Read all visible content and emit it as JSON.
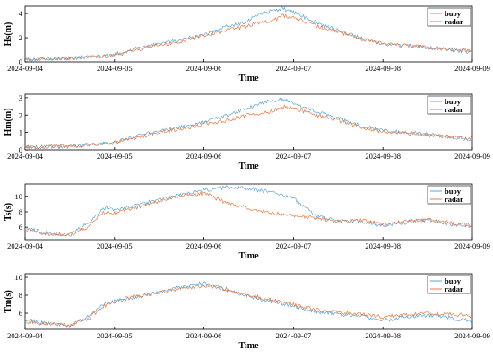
{
  "colors": {
    "buoy": "#5aa7de",
    "radar": "#ec7a42",
    "axis": "#000000"
  },
  "chart_data": [
    {
      "type": "line",
      "ylabel": "Hs(m)",
      "xlabel": "Time",
      "ylim": [
        0,
        4.6
      ],
      "yticks": [
        0,
        2,
        4
      ],
      "xlim": [
        "2024-09-04",
        "2024-09-09"
      ],
      "xticks": [
        "2024-09-04",
        "2024-09-05",
        "2024-09-06",
        "2024-09-07",
        "2024-09-08",
        "2024-09-09"
      ],
      "grid": false,
      "legend": "top-right",
      "x": [
        "2024-09-04",
        "2024-09-04 12:00",
        "2024-09-04 17:00",
        "2024-09-05",
        "2024-09-05 06:00",
        "2024-09-05 12:00",
        "2024-09-05 18:00",
        "2024-09-06",
        "2024-09-06 06:00",
        "2024-09-06 12:00",
        "2024-09-06 15:00",
        "2024-09-06 18:00",
        "2024-09-06 21:00",
        "2024-09-07",
        "2024-09-07 06:00",
        "2024-09-07 12:00",
        "2024-09-07 18:00",
        "2024-09-08",
        "2024-09-08 12:00",
        "2024-09-09"
      ],
      "series": [
        {
          "name": "buoy",
          "values": [
            0.2,
            0.3,
            0.4,
            0.6,
            1.1,
            1.5,
            1.8,
            2.3,
            2.9,
            3.4,
            4.0,
            4.2,
            4.4,
            4.1,
            3.3,
            2.6,
            2.0,
            1.5,
            1.2,
            0.8
          ]
        },
        {
          "name": "radar",
          "values": [
            0.2,
            0.3,
            0.4,
            0.5,
            1.0,
            1.4,
            1.7,
            2.2,
            2.6,
            3.0,
            3.3,
            3.3,
            3.8,
            3.7,
            3.0,
            2.5,
            1.9,
            1.5,
            1.2,
            0.9
          ]
        }
      ]
    },
    {
      "type": "line",
      "ylabel": "Hm(m)",
      "xlabel": "Time",
      "ylim": [
        0,
        3.2
      ],
      "yticks": [
        0,
        1,
        2,
        3
      ],
      "xlim": [
        "2024-09-04",
        "2024-09-09"
      ],
      "xticks": [
        "2024-09-04",
        "2024-09-05",
        "2024-09-06",
        "2024-09-07",
        "2024-09-08",
        "2024-09-09"
      ],
      "grid": false,
      "legend": "top-right",
      "x": [
        "2024-09-04",
        "2024-09-04 12:00",
        "2024-09-04 17:00",
        "2024-09-05",
        "2024-09-05 06:00",
        "2024-09-05 12:00",
        "2024-09-05 18:00",
        "2024-09-06",
        "2024-09-06 06:00",
        "2024-09-06 12:00",
        "2024-09-06 15:00",
        "2024-09-06 18:00",
        "2024-09-06 21:00",
        "2024-09-07",
        "2024-09-07 06:00",
        "2024-09-07 12:00",
        "2024-09-07 18:00",
        "2024-09-08",
        "2024-09-08 12:00",
        "2024-09-09"
      ],
      "series": [
        {
          "name": "buoy",
          "values": [
            0.15,
            0.2,
            0.3,
            0.45,
            0.8,
            1.1,
            1.3,
            1.6,
            2.0,
            2.4,
            2.7,
            2.8,
            2.9,
            2.7,
            2.2,
            1.8,
            1.4,
            1.1,
            0.9,
            0.6
          ]
        },
        {
          "name": "radar",
          "values": [
            0.15,
            0.2,
            0.3,
            0.4,
            0.7,
            1.0,
            1.2,
            1.5,
            1.7,
            2.0,
            2.1,
            2.2,
            2.5,
            2.4,
            2.0,
            1.7,
            1.3,
            1.05,
            0.85,
            0.65
          ]
        }
      ]
    },
    {
      "type": "line",
      "ylabel": "Ts(s)",
      "xlabel": "Time",
      "ylim": [
        4.4,
        11.6
      ],
      "yticks": [
        6,
        8,
        10
      ],
      "xlim": [
        "2024-09-04",
        "2024-09-09"
      ],
      "xticks": [
        "2024-09-04",
        "2024-09-05",
        "2024-09-06",
        "2024-09-07",
        "2024-09-08",
        "2024-09-09"
      ],
      "grid": false,
      "legend": "top-right",
      "x": [
        "2024-09-04",
        "2024-09-04 05:00",
        "2024-09-04 12:00",
        "2024-09-04 17:00",
        "2024-09-04 21:00",
        "2024-09-05",
        "2024-09-05 06:00",
        "2024-09-05 12:00",
        "2024-09-05 18:00",
        "2024-09-06",
        "2024-09-06 06:00",
        "2024-09-06 12:00",
        "2024-09-06 18:00",
        "2024-09-07",
        "2024-09-07 06:00",
        "2024-09-07 12:00",
        "2024-09-07 18:00",
        "2024-09-08",
        "2024-09-08 06:00",
        "2024-09-08 12:00",
        "2024-09-08 18:00",
        "2024-09-09"
      ],
      "series": [
        {
          "name": "buoy",
          "values": [
            6.0,
            5.3,
            5.0,
            6.5,
            8.5,
            8.3,
            8.8,
            9.6,
            10.2,
            10.8,
            11.2,
            11.0,
            10.6,
            9.8,
            7.5,
            6.8,
            6.8,
            6.2,
            6.6,
            7.0,
            6.4,
            6.0
          ]
        },
        {
          "name": "radar",
          "values": [
            5.8,
            5.2,
            5.0,
            6.0,
            8.0,
            7.8,
            8.5,
            9.4,
            10.0,
            10.4,
            9.2,
            8.4,
            7.8,
            7.6,
            7.2,
            6.8,
            6.9,
            6.4,
            6.7,
            7.0,
            6.6,
            6.2
          ]
        }
      ]
    },
    {
      "type": "line",
      "ylabel": "Tm(s)",
      "xlabel": "Time",
      "ylim": [
        4.2,
        10.4
      ],
      "yticks": [
        6,
        8,
        10
      ],
      "xlim": [
        "2024-09-04",
        "2024-09-09"
      ],
      "xticks": [
        "2024-09-04",
        "2024-09-05",
        "2024-09-06",
        "2024-09-07",
        "2024-09-08",
        "2024-09-09"
      ],
      "grid": false,
      "legend": "top-right",
      "x": [
        "2024-09-04",
        "2024-09-04 05:00",
        "2024-09-04 12:00",
        "2024-09-04 17:00",
        "2024-09-04 21:00",
        "2024-09-05",
        "2024-09-05 06:00",
        "2024-09-05 12:00",
        "2024-09-05 18:00",
        "2024-09-06",
        "2024-09-06 06:00",
        "2024-09-06 12:00",
        "2024-09-06 18:00",
        "2024-09-07",
        "2024-09-07 06:00",
        "2024-09-07 12:00",
        "2024-09-07 18:00",
        "2024-09-08",
        "2024-09-08 06:00",
        "2024-09-08 12:00",
        "2024-09-08 18:00",
        "2024-09-09"
      ],
      "series": [
        {
          "name": "buoy",
          "values": [
            5.3,
            4.9,
            4.6,
            5.6,
            7.0,
            7.4,
            7.8,
            8.4,
            8.9,
            9.4,
            8.6,
            7.9,
            7.3,
            6.8,
            6.2,
            5.9,
            5.7,
            5.2,
            5.6,
            5.8,
            5.5,
            5.1
          ]
        },
        {
          "name": "radar",
          "values": [
            5.1,
            4.8,
            4.6,
            5.4,
            6.8,
            7.3,
            7.9,
            8.3,
            8.7,
            9.1,
            8.7,
            8.0,
            7.5,
            7.0,
            6.4,
            6.1,
            5.9,
            5.6,
            5.8,
            6.0,
            5.9,
            5.7
          ]
        }
      ]
    }
  ]
}
